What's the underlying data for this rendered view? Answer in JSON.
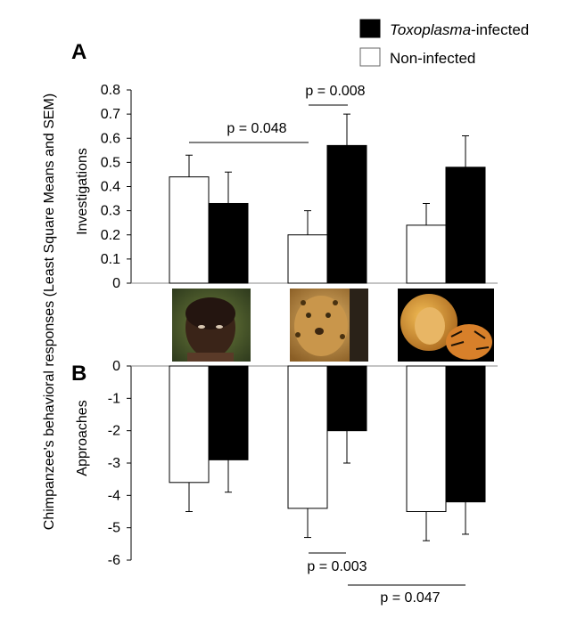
{
  "chart_data": [
    {
      "type": "bar",
      "panel": "A",
      "ylabel": "Investigations",
      "categories": [
        "Human",
        "Leopard",
        "Lion and tiger"
      ],
      "series": [
        {
          "name": "Non-infected",
          "values": [
            0.44,
            0.2,
            0.24
          ],
          "sem": [
            0.09,
            0.1,
            0.09
          ]
        },
        {
          "name": "Toxoplasma-infected",
          "values": [
            0.33,
            0.57,
            0.48
          ],
          "sem": [
            0.13,
            0.13,
            0.13
          ]
        }
      ],
      "ylim": [
        0,
        0.8
      ],
      "yticks": [
        "0",
        "0.1",
        "0.2",
        "0.3",
        "0.4",
        "0.5",
        "0.6",
        "0.7",
        "0.8"
      ],
      "annotations": [
        {
          "label": "p = 0.008",
          "between": [
            "Leopard Non-infected",
            "Leopard Toxoplasma-infected"
          ]
        },
        {
          "label": "p = 0.048",
          "between": [
            "Human Non-infected",
            "Leopard Non-infected"
          ]
        }
      ]
    },
    {
      "type": "bar",
      "panel": "B",
      "ylabel": "Approaches",
      "categories": [
        "Human",
        "Leopard",
        "Lion and tiger"
      ],
      "series": [
        {
          "name": "Non-infected",
          "values": [
            -3.6,
            -4.4,
            -4.5
          ],
          "sem": [
            0.9,
            0.9,
            0.9
          ]
        },
        {
          "name": "Toxoplasma-infected",
          "values": [
            -2.9,
            -2.0,
            -4.2
          ],
          "sem": [
            1.0,
            1.0,
            1.0
          ]
        }
      ],
      "ylim": [
        -6,
        0
      ],
      "yticks": [
        "0",
        "-1",
        "-2",
        "-3",
        "-4",
        "-5",
        "-6"
      ],
      "annotations": [
        {
          "label": "p = 0.003",
          "between": [
            "Leopard Non-infected",
            "Leopard Toxoplasma-infected"
          ]
        },
        {
          "label": "p = 0.047",
          "between": [
            "Leopard Toxoplasma-infected",
            "Lion and tiger Toxoplasma-infected"
          ]
        }
      ]
    }
  ],
  "figure": {
    "shared_ylabel": "Chimpanzee's behavioral responses (Least  Square Means and  SEM)",
    "panel_a_letter": "A",
    "panel_b_letter": "B",
    "legend": {
      "infected_prefix": "Toxoplasma",
      "infected_suffix": "-infected",
      "non_infected": "Non-infected"
    },
    "stimuli": [
      "Human face photo",
      "Leopard photo",
      "Lion and tiger photo"
    ]
  },
  "colors": {
    "non_infected_fill": "#ffffff",
    "infected_fill": "#000000",
    "axis": "#000000"
  }
}
